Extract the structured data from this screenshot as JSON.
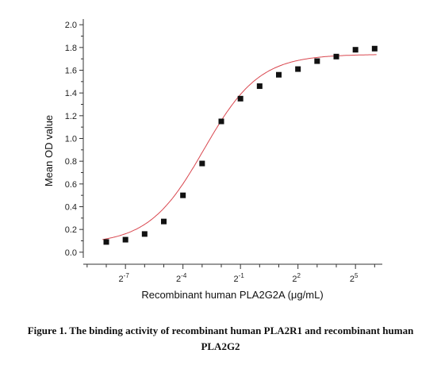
{
  "chart_data": {
    "type": "scatter",
    "xlabel": "Recombinant human PLA2G2A (μg/mL)",
    "ylabel": "Mean OD value",
    "x_scale": "log2",
    "xlim_log2": [
      -9.2,
      6.4
    ],
    "ylim": [
      -0.05,
      2.05
    ],
    "x_ticks_log2": [
      -7,
      -4,
      -1,
      2,
      5
    ],
    "x_tick_base": "2",
    "x_tick_exponents": [
      "-7",
      "-4",
      "-1",
      "2",
      "5"
    ],
    "y_ticks": [
      0.0,
      0.2,
      0.4,
      0.6,
      0.8,
      1.0,
      1.2,
      1.4,
      1.6,
      1.8,
      2.0
    ],
    "y_tick_labels": [
      "0.0",
      "0.2",
      "0.4",
      "0.6",
      "0.8",
      "1.0",
      "1.2",
      "1.4",
      "1.6",
      "1.8",
      "2.0"
    ],
    "points_log2x": [
      -8,
      -7,
      -6,
      -5,
      -4,
      -3,
      -2,
      -1,
      0,
      1,
      2,
      3,
      4,
      5,
      6
    ],
    "points_y": [
      0.09,
      0.11,
      0.16,
      0.27,
      0.5,
      0.78,
      1.15,
      1.35,
      1.46,
      1.56,
      1.61,
      1.68,
      1.72,
      1.78,
      1.79
    ],
    "fit_curve": {
      "bottom": 0.07,
      "top": 1.74,
      "log2_ec50": -2.9,
      "hill_slope": 0.32
    },
    "colors": {
      "points": "#111111",
      "curve": "#d9474f",
      "axis": "#333333"
    }
  },
  "caption": {
    "line1": "Figure 1. The binding activity of recombinant human PLA2R1 and recombinant human",
    "line2": "PLA2G2"
  }
}
